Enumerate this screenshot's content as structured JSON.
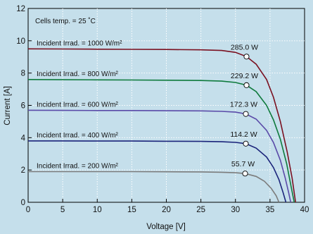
{
  "chart_data": {
    "type": "line",
    "xlabel": "Voltage [V]",
    "ylabel": "Current [A]",
    "xlim": [
      0,
      40
    ],
    "ylim": [
      0,
      12
    ],
    "xticks": [
      0,
      5,
      10,
      15,
      20,
      25,
      30,
      35,
      40
    ],
    "yticks": [
      0,
      2,
      4,
      6,
      8,
      10,
      12
    ],
    "grid": true,
    "annotation": "Cells temp. = 25 ˚C",
    "background_color": "#c5dfeb",
    "series": [
      {
        "name": "Incident Irrad. = 1000 W/m²",
        "power_label": "285.0 W",
        "color": "#7a1020",
        "mpp": [
          31.6,
          9.02
        ],
        "points": [
          [
            0,
            9.5
          ],
          [
            5,
            9.49
          ],
          [
            10,
            9.48
          ],
          [
            15,
            9.47
          ],
          [
            20,
            9.46
          ],
          [
            25,
            9.44
          ],
          [
            28,
            9.4
          ],
          [
            30,
            9.28
          ],
          [
            31.6,
            9.02
          ],
          [
            33,
            8.55
          ],
          [
            34.5,
            7.6
          ],
          [
            35.5,
            6.5
          ],
          [
            36.5,
            5.0
          ],
          [
            37.5,
            3.1
          ],
          [
            38.2,
            1.5
          ],
          [
            38.7,
            0
          ]
        ]
      },
      {
        "name": "Incident Irrad. = 800 W/m²",
        "power_label": "229.2 W",
        "color": "#0e7a3c",
        "mpp": [
          31.6,
          7.25
        ],
        "points": [
          [
            0,
            7.6
          ],
          [
            5,
            7.59
          ],
          [
            10,
            7.58
          ],
          [
            15,
            7.57
          ],
          [
            20,
            7.56
          ],
          [
            25,
            7.54
          ],
          [
            28,
            7.5
          ],
          [
            30,
            7.42
          ],
          [
            31.6,
            7.25
          ],
          [
            33,
            6.85
          ],
          [
            34.5,
            6.0
          ],
          [
            35.5,
            5.1
          ],
          [
            36.5,
            3.9
          ],
          [
            37.4,
            2.4
          ],
          [
            38.0,
            1.1
          ],
          [
            38.5,
            0
          ]
        ]
      },
      {
        "name": "Incident Irrad. = 600 W/m²",
        "power_label": "172.3 W",
        "color": "#5a4aa8",
        "mpp": [
          31.5,
          5.47
        ],
        "points": [
          [
            0,
            5.7
          ],
          [
            5,
            5.69
          ],
          [
            10,
            5.68
          ],
          [
            15,
            5.68
          ],
          [
            20,
            5.67
          ],
          [
            25,
            5.66
          ],
          [
            28,
            5.63
          ],
          [
            30,
            5.58
          ],
          [
            31.5,
            5.47
          ],
          [
            33,
            5.15
          ],
          [
            34.5,
            4.45
          ],
          [
            35.5,
            3.7
          ],
          [
            36.5,
            2.6
          ],
          [
            37.2,
            1.5
          ],
          [
            37.7,
            0.6
          ],
          [
            38.0,
            0
          ]
        ]
      },
      {
        "name": "Incident Irrad. = 400 W/m²",
        "power_label": "114.2 W",
        "color": "#1a237a",
        "mpp": [
          31.5,
          3.63
        ],
        "points": [
          [
            0,
            3.8
          ],
          [
            5,
            3.8
          ],
          [
            10,
            3.79
          ],
          [
            15,
            3.79
          ],
          [
            20,
            3.78
          ],
          [
            25,
            3.77
          ],
          [
            28,
            3.75
          ],
          [
            30,
            3.71
          ],
          [
            31.5,
            3.63
          ],
          [
            33,
            3.35
          ],
          [
            34.5,
            2.8
          ],
          [
            35.5,
            2.15
          ],
          [
            36.3,
            1.4
          ],
          [
            36.9,
            0.6
          ],
          [
            37.3,
            0
          ]
        ]
      },
      {
        "name": "Incident Irrad. = 200 W/m²",
        "power_label": "55.7 W",
        "color": "#7c7c7c",
        "mpp": [
          31.4,
          1.78
        ],
        "points": [
          [
            0,
            1.9
          ],
          [
            5,
            1.9
          ],
          [
            10,
            1.9
          ],
          [
            15,
            1.9
          ],
          [
            20,
            1.89
          ],
          [
            25,
            1.88
          ],
          [
            28,
            1.86
          ],
          [
            30,
            1.83
          ],
          [
            31.4,
            1.78
          ],
          [
            33,
            1.6
          ],
          [
            34.2,
            1.3
          ],
          [
            35.2,
            0.85
          ],
          [
            35.9,
            0.4
          ],
          [
            36.3,
            0
          ]
        ]
      }
    ]
  }
}
